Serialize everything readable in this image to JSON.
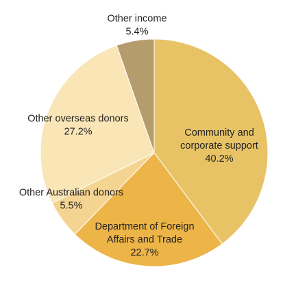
{
  "chart_data": {
    "type": "pie",
    "slices": [
      {
        "label": [
          "Community and",
          "corporate support"
        ],
        "percent_text": "40.2%",
        "value": 40.2,
        "color": "#E8C366"
      },
      {
        "label": [
          "Department of Foreign",
          "Affairs and Trade"
        ],
        "percent_text": "22.7%",
        "value": 22.7,
        "color": "#EDB447"
      },
      {
        "label": [
          "Other Australian donors"
        ],
        "percent_text": "5.5%",
        "value": 5.5,
        "color": "#F5D492"
      },
      {
        "label": [
          "Other overseas donors"
        ],
        "percent_text": "27.2%",
        "value": 27.2,
        "color": "#F9E5B6"
      },
      {
        "label": [
          "Other income"
        ],
        "percent_text": "5.4%",
        "value": 5.4,
        "color": "#B59C6C"
      }
    ]
  }
}
